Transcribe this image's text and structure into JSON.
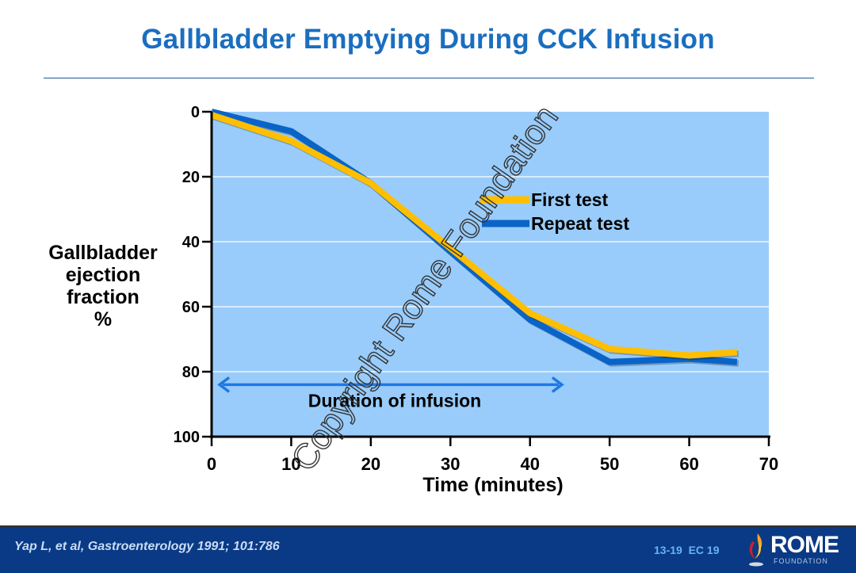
{
  "slide": {
    "title": "Gallbladder Emptying During CCK Infusion",
    "citation": "Yap L, et al, Gastroenterology 1991; 101:786",
    "slide_number": "13-19  EC 19",
    "logo": {
      "word": "ROME",
      "sub": "FOUNDATION"
    },
    "watermark": "Copyright Rome Foundation"
  },
  "colors": {
    "title": "#1a6ec0",
    "plot_bg": "#99ccfa",
    "first_test": "#ffbf00",
    "repeat_test": "#0a64c8",
    "arrow": "#1e78e6",
    "footer_bg": "#0a3a86"
  },
  "chart_data": {
    "type": "line",
    "title": "Gallbladder Emptying During CCK Infusion",
    "xlabel": "Time (minutes)",
    "ylabel_lines": [
      "Gallbladder",
      "ejection",
      "fraction",
      "%"
    ],
    "xlim": [
      0,
      70
    ],
    "ylim": [
      0,
      100
    ],
    "y_inverted": true,
    "grid": "horizontal",
    "x_ticks": [
      "0",
      "10",
      "20",
      "30",
      "40",
      "50",
      "60",
      "70"
    ],
    "y_ticks": [
      "0",
      "20",
      "40",
      "60",
      "80",
      "100"
    ],
    "legend_position": "upper-right",
    "series": [
      {
        "name": "First test",
        "x": [
          0,
          10,
          20,
          30,
          40,
          50,
          60,
          66
        ],
        "values": [
          1,
          9,
          22,
          42,
          62,
          73,
          75,
          74
        ]
      },
      {
        "name": "Repeat test",
        "x": [
          0,
          10,
          20,
          30,
          40,
          50,
          60,
          66
        ],
        "values": [
          0,
          6,
          22,
          43,
          64,
          77,
          76,
          77
        ]
      }
    ],
    "annotations": [
      {
        "text": "Duration of infusion",
        "type": "double-arrow",
        "x_start": 1,
        "x_end": 44,
        "y": 84
      }
    ]
  }
}
